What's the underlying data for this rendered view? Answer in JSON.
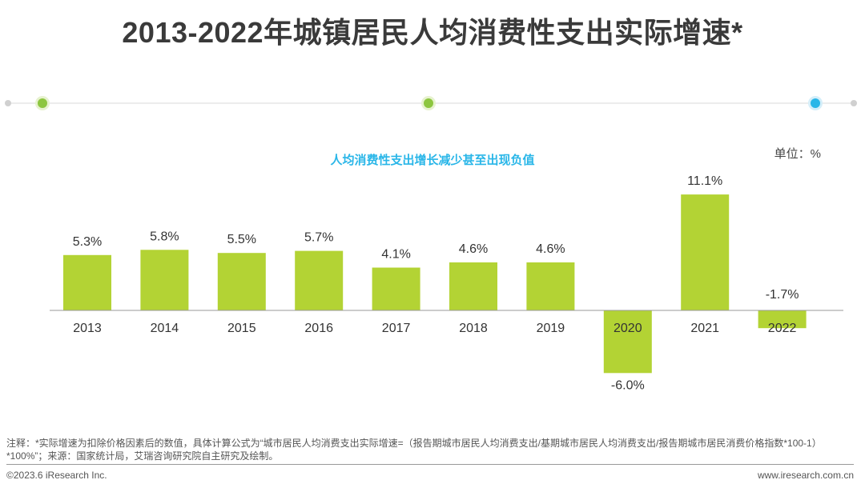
{
  "title": "2013-2022年城镇居民人均消费性支出实际增速*",
  "unit_label": "单位：%",
  "colors": {
    "bar": "#b3d334",
    "accent": "#29b6e8",
    "dot_green": "#8dc63f",
    "axis": "#999999"
  },
  "chart_data": {
    "type": "bar",
    "title": "2013-2022年城镇居民人均消费性支出实际增速*",
    "subtitle": "人均消费性支出增长减少甚至出现负值",
    "categories": [
      "2013",
      "2014",
      "2015",
      "2016",
      "2017",
      "2018",
      "2019",
      "2020",
      "2021",
      "2022"
    ],
    "values": [
      5.3,
      5.8,
      5.5,
      5.7,
      4.1,
      4.6,
      4.6,
      -6.0,
      11.1,
      -1.7
    ],
    "value_labels": [
      "5.3%",
      "5.8%",
      "5.5%",
      "5.7%",
      "4.1%",
      "4.6%",
      "4.6%",
      "-6.0%",
      "11.1%",
      "-1.7%"
    ],
    "xlabel": "",
    "ylabel": "",
    "unit": "%",
    "ylim": [
      -6.5,
      12.5
    ],
    "grid": false
  },
  "note": "注释：*实际增速为扣除价格因素后的数值，具体计算公式为“城市居民人均消费支出实际增速=（报告期城市居民人均消费支出/基期城市居民人均消费支出/报告期城市居民消费价格指数*100-1）*100%”；来源：国家统计局，艾瑞咨询研究院自主研究及绘制。",
  "footer": {
    "copyright": "©2023.6 iResearch Inc.",
    "website": "www.iresearch.com.cn"
  }
}
